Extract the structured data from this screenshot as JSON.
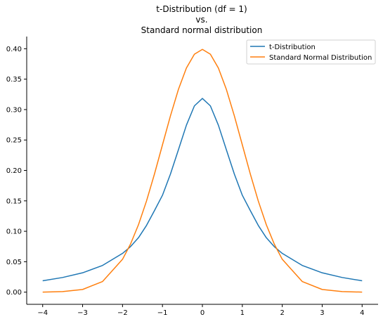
{
  "chart_data": {
    "type": "line",
    "title_lines": [
      "t-Distribution (df = 1)",
      "vs.",
      "Standard normal distribution"
    ],
    "xlabel": "",
    "ylabel": "",
    "xlim": [
      -4.4,
      4.4
    ],
    "ylim": [
      -0.02,
      0.42
    ],
    "x_ticks": [
      -4,
      -3,
      -2,
      -1,
      0,
      1,
      2,
      3,
      4
    ],
    "x_tick_labels": [
      "−4",
      "−3",
      "−2",
      "−1",
      "0",
      "1",
      "2",
      "3",
      "4"
    ],
    "y_ticks": [
      0.0,
      0.05,
      0.1,
      0.15,
      0.2,
      0.25,
      0.3,
      0.35,
      0.4
    ],
    "y_tick_labels": [
      "0.00",
      "0.05",
      "0.10",
      "0.15",
      "0.20",
      "0.25",
      "0.30",
      "0.35",
      "0.40"
    ],
    "grid": false,
    "legend_position": "top-right",
    "series": [
      {
        "name": "t-Distribution",
        "color": "#1f77b4",
        "x": [
          -4,
          -3.5,
          -3,
          -2.5,
          -2,
          -1.8,
          -1.6,
          -1.4,
          -1.2,
          -1,
          -0.8,
          -0.6,
          -0.4,
          -0.2,
          0,
          0.2,
          0.4,
          0.6,
          0.8,
          1,
          1.2,
          1.4,
          1.6,
          1.8,
          2,
          2.5,
          3,
          3.5,
          4
        ],
        "y": [
          0.0187,
          0.0241,
          0.0318,
          0.0439,
          0.0637,
          0.0748,
          0.0895,
          0.1096,
          0.134,
          0.1592,
          0.1941,
          0.2341,
          0.2744,
          0.3061,
          0.3183,
          0.3061,
          0.2744,
          0.2341,
          0.1941,
          0.1592,
          0.134,
          0.1096,
          0.0895,
          0.0748,
          0.0637,
          0.0439,
          0.0318,
          0.0241,
          0.0187
        ]
      },
      {
        "name": "Standard Normal Distribution",
        "color": "#ff7f0e",
        "x": [
          -4,
          -3.5,
          -3,
          -2.5,
          -2,
          -1.8,
          -1.6,
          -1.4,
          -1.2,
          -1,
          -0.8,
          -0.6,
          -0.4,
          -0.2,
          0,
          0.2,
          0.4,
          0.6,
          0.8,
          1,
          1.2,
          1.4,
          1.6,
          1.8,
          2,
          2.5,
          3,
          3.5,
          4
        ],
        "y": [
          0.0001,
          0.0009,
          0.0044,
          0.0175,
          0.054,
          0.079,
          0.1109,
          0.1497,
          0.1942,
          0.242,
          0.2897,
          0.3332,
          0.3683,
          0.391,
          0.3989,
          0.391,
          0.3683,
          0.3332,
          0.2897,
          0.242,
          0.1942,
          0.1497,
          0.1109,
          0.079,
          0.054,
          0.0175,
          0.0044,
          0.0009,
          0.0001
        ]
      }
    ]
  }
}
